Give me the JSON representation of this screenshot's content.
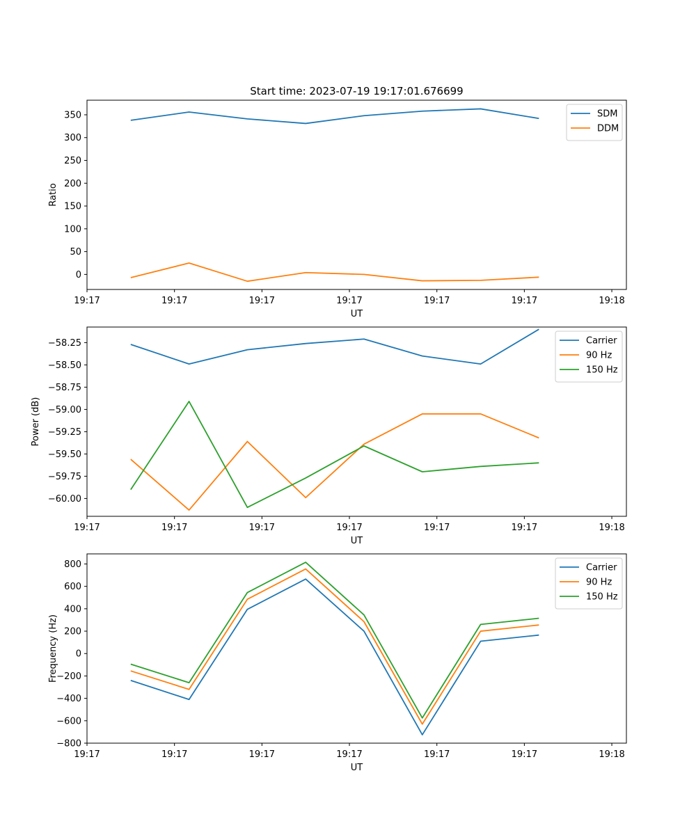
{
  "figure_title": "Start time: 2023-07-19 19:17:01.676699",
  "chart_data": [
    {
      "type": "line",
      "title": "Start time: 2023-07-19 19:17:01.676699",
      "xlabel": "UT",
      "ylabel": "Ratio",
      "x": [
        0,
        1,
        2,
        3,
        4,
        5,
        6,
        7
      ],
      "xlim": [
        -0.75,
        8.5
      ],
      "xticks": [
        -0.75,
        0.75,
        2.25,
        3.75,
        5.25,
        6.75,
        8.25
      ],
      "xticklabels": [
        "19:17",
        "19:17",
        "19:17",
        "19:17",
        "19:17",
        "19:17",
        "19:18"
      ],
      "ylim": [
        -33,
        382
      ],
      "yticks": [
        0,
        50,
        100,
        150,
        200,
        250,
        300,
        350
      ],
      "legend": "top-right",
      "series": [
        {
          "name": "SDM",
          "color": "#1f77b4",
          "values": [
            338,
            356,
            341,
            331,
            348,
            358,
            363,
            342
          ]
        },
        {
          "name": "DDM",
          "color": "#ff7f0e",
          "values": [
            -7,
            25,
            -15,
            4,
            0,
            -14,
            -13,
            -6
          ]
        }
      ]
    },
    {
      "type": "line",
      "title": "",
      "xlabel": "UT",
      "ylabel": "Power (dB)",
      "x": [
        0,
        1,
        2,
        3,
        4,
        5,
        6,
        7
      ],
      "xlim": [
        -0.75,
        8.5
      ],
      "xticks": [
        -0.75,
        0.75,
        2.25,
        3.75,
        5.25,
        6.75,
        8.25
      ],
      "xticklabels": [
        "19:17",
        "19:17",
        "19:17",
        "19:17",
        "19:17",
        "19:17",
        "19:18"
      ],
      "ylim": [
        -60.2,
        -58.075
      ],
      "yticks": [
        -60.0,
        -59.75,
        -59.5,
        -59.25,
        -59.0,
        -58.75,
        -58.5,
        -58.25
      ],
      "yticklabels": [
        "−60.00",
        "−59.75",
        "−59.50",
        "−59.25",
        "−59.00",
        "−58.75",
        "−58.50",
        "−58.25"
      ],
      "legend": "top-right",
      "series": [
        {
          "name": "Carrier",
          "color": "#1f77b4",
          "values": [
            -58.27,
            -58.49,
            -58.33,
            -58.26,
            -58.21,
            -58.4,
            -58.49,
            -58.1
          ]
        },
        {
          "name": "90 Hz",
          "color": "#ff7f0e",
          "values": [
            -59.56,
            -60.13,
            -59.36,
            -59.99,
            -59.39,
            -59.05,
            -59.05,
            -59.32
          ]
        },
        {
          "name": "150 Hz",
          "color": "#2ca02c",
          "values": [
            -59.9,
            -58.91,
            -60.1,
            -59.77,
            -59.41,
            -59.7,
            -59.64,
            -59.6
          ]
        }
      ]
    },
    {
      "type": "line",
      "title": "",
      "xlabel": "UT",
      "ylabel": "Frequency (Hz)",
      "x": [
        0,
        1,
        2,
        3,
        4,
        5,
        6,
        7
      ],
      "xlim": [
        -0.75,
        8.5
      ],
      "xticks": [
        -0.75,
        0.75,
        2.25,
        3.75,
        5.25,
        6.75,
        8.25
      ],
      "xticklabels": [
        "19:17",
        "19:17",
        "19:17",
        "19:17",
        "19:17",
        "19:17",
        "19:18"
      ],
      "ylim": [
        -800,
        890
      ],
      "yticks": [
        -800,
        -600,
        -400,
        -200,
        0,
        200,
        400,
        600,
        800
      ],
      "yticklabels": [
        "−800",
        "−600",
        "−400",
        "−200",
        "0",
        "200",
        "400",
        "600",
        "800"
      ],
      "legend": "top-right",
      "series": [
        {
          "name": "Carrier",
          "color": "#1f77b4",
          "values": [
            -240,
            -410,
            395,
            665,
            200,
            -725,
            110,
            165
          ]
        },
        {
          "name": "90 Hz",
          "color": "#ff7f0e",
          "values": [
            -155,
            -320,
            485,
            755,
            285,
            -630,
            200,
            255
          ]
        },
        {
          "name": "150 Hz",
          "color": "#2ca02c",
          "values": [
            -95,
            -260,
            545,
            815,
            345,
            -575,
            260,
            315
          ]
        }
      ]
    }
  ]
}
